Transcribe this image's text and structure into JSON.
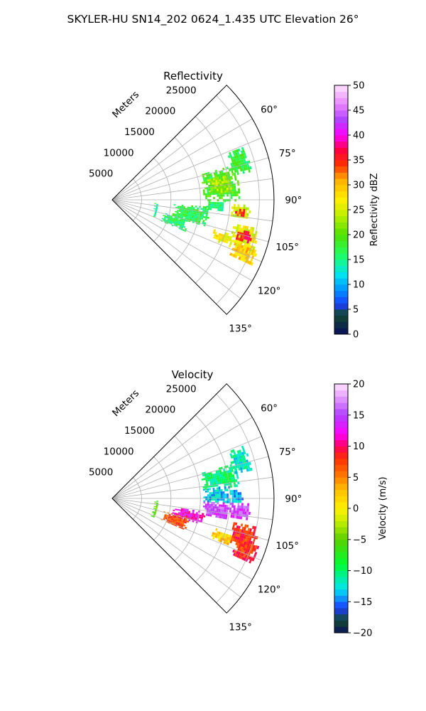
{
  "title": "SKYLER-HU  SN14_202  0624_1.435 UTC Elevation 26°",
  "chart_data": [
    {
      "type": "heatmap",
      "title": "Reflectivity",
      "projection": "polar sector",
      "rlabel": "Meters",
      "r_ticks": [
        5000,
        10000,
        15000,
        20000,
        25000
      ],
      "r_tick_labels": [
        "5000",
        "10000",
        "15000",
        "20000",
        "25000"
      ],
      "rlim": [
        0,
        27500
      ],
      "azimuth_range_deg": [
        45,
        135
      ],
      "azimuth_ticks_deg": [
        60,
        75,
        90,
        105,
        120,
        135
      ],
      "azimuth_tick_labels": [
        "60°",
        "75°",
        "90°",
        "105°",
        "120°",
        "135°"
      ],
      "grid": true,
      "colorbar": {
        "label": "Reflectivity dBZ",
        "min": 0,
        "max": 50,
        "ticks": [
          0,
          5,
          10,
          15,
          20,
          25,
          30,
          35,
          40,
          45,
          50
        ],
        "tick_labels": [
          "0",
          "5",
          "10",
          "15",
          "20",
          "25",
          "30",
          "35",
          "40",
          "45",
          "50"
        ],
        "color_stops": [
          [
            0,
            "#08105c"
          ],
          [
            4,
            "#124a2e"
          ],
          [
            6,
            "#1a3cff"
          ],
          [
            9,
            "#0096ff"
          ],
          [
            12,
            "#00e4f0"
          ],
          [
            16,
            "#20ff60"
          ],
          [
            20,
            "#50e000"
          ],
          [
            24,
            "#c0f000"
          ],
          [
            27,
            "#fff000"
          ],
          [
            31,
            "#ffb000"
          ],
          [
            34,
            "#ff3000"
          ],
          [
            37,
            "#ff0040"
          ],
          [
            40,
            "#ff00ff"
          ],
          [
            43,
            "#b040ff"
          ],
          [
            46,
            "#e880ff"
          ],
          [
            50,
            "#ffe4ff"
          ]
        ]
      },
      "echo_cells": [
        {
          "az": [
            74,
            90
          ],
          "r": [
            15500,
            21500
          ],
          "value": 19
        },
        {
          "az": [
            68,
            78
          ],
          "r": [
            21000,
            24000
          ],
          "value": 17
        },
        {
          "az": [
            78,
            86
          ],
          "r": [
            16500,
            20500
          ],
          "value": 23
        },
        {
          "az": [
            90,
            96
          ],
          "r": [
            16000,
            19000
          ],
          "value": 16
        },
        {
          "az": [
            94,
            106
          ],
          "r": [
            10500,
            16500
          ],
          "value": 17
        },
        {
          "az": [
            104,
            113
          ],
          "r": [
            9000,
            13500
          ],
          "value": 16
        },
        {
          "az": [
            92,
            98
          ],
          "r": [
            20000,
            23500
          ],
          "value": 25
        },
        {
          "az": [
            94,
            97
          ],
          "r": [
            21000,
            22500
          ],
          "value": 34
        },
        {
          "az": [
            101,
            110
          ],
          "r": [
            21000,
            25500
          ],
          "value": 26
        },
        {
          "az": [
            103,
            107
          ],
          "r": [
            22000,
            24500
          ],
          "value": 36
        },
        {
          "az": [
            106,
            111
          ],
          "r": [
            18000,
            21500
          ],
          "value": 27
        },
        {
          "az": [
            108,
            115
          ],
          "r": [
            22000,
            26000
          ],
          "value": 29
        },
        {
          "az": [
            93,
            114
          ],
          "r": [
            7200,
            7800
          ],
          "value": 15
        }
      ]
    },
    {
      "type": "heatmap",
      "title": "Velocity",
      "projection": "polar sector",
      "rlabel": "Meters",
      "r_ticks": [
        5000,
        10000,
        15000,
        20000,
        25000
      ],
      "r_tick_labels": [
        "5000",
        "10000",
        "15000",
        "20000",
        "25000"
      ],
      "rlim": [
        0,
        27500
      ],
      "azimuth_range_deg": [
        45,
        135
      ],
      "azimuth_ticks_deg": [
        60,
        75,
        90,
        105,
        120,
        135
      ],
      "azimuth_tick_labels": [
        "60°",
        "75°",
        "90°",
        "105°",
        "120°",
        "135°"
      ],
      "grid": true,
      "colorbar": {
        "label": "Velocity (m/s)",
        "min": -20,
        "max": 20,
        "ticks": [
          -20,
          -15,
          -10,
          -5,
          0,
          5,
          10,
          15,
          20
        ],
        "tick_labels": [
          "−20",
          "−15",
          "−10",
          "−5",
          "0",
          "5",
          "10",
          "15",
          "20"
        ],
        "color_stops": [
          [
            -20,
            "#08105c"
          ],
          [
            -18,
            "#124a2e"
          ],
          [
            -16,
            "#1a3cff"
          ],
          [
            -13,
            "#00e4f0"
          ],
          [
            -11,
            "#00f0a0"
          ],
          [
            -9,
            "#00ff30"
          ],
          [
            -5,
            "#5ad000"
          ],
          [
            -2,
            "#c8f000"
          ],
          [
            0,
            "#fff000"
          ],
          [
            3,
            "#ffc000"
          ],
          [
            5,
            "#ff8000"
          ],
          [
            8,
            "#ff3000"
          ],
          [
            10,
            "#ff0060"
          ],
          [
            12,
            "#ff00ff"
          ],
          [
            15,
            "#b040ff"
          ],
          [
            18,
            "#e8a0ff"
          ],
          [
            20,
            "#ffe4ff"
          ]
        ]
      },
      "echo_cells": [
        {
          "az": [
            74,
            84
          ],
          "r": [
            15500,
            21500
          ],
          "value": -10
        },
        {
          "az": [
            68,
            78
          ],
          "r": [
            21000,
            24000
          ],
          "value": -12
        },
        {
          "az": [
            84,
            92
          ],
          "r": [
            15500,
            20000
          ],
          "value": -13
        },
        {
          "az": [
            86,
            92
          ],
          "r": [
            20000,
            22000
          ],
          "value": -14
        },
        {
          "az": [
            92,
            100
          ],
          "r": [
            15500,
            20000
          ],
          "value": 15
        },
        {
          "az": [
            98,
            106
          ],
          "r": [
            10500,
            16000
          ],
          "value": 12
        },
        {
          "az": [
            104,
            113
          ],
          "r": [
            9000,
            13500
          ],
          "value": 7
        },
        {
          "az": [
            92,
            99
          ],
          "r": [
            20000,
            23500
          ],
          "value": 15
        },
        {
          "az": [
            101,
            110
          ],
          "r": [
            21000,
            25500
          ],
          "value": 8
        },
        {
          "az": [
            106,
            111
          ],
          "r": [
            18000,
            21500
          ],
          "value": 2
        },
        {
          "az": [
            108,
            115
          ],
          "r": [
            22000,
            26000
          ],
          "value": 8
        },
        {
          "az": [
            93,
            114
          ],
          "r": [
            7200,
            7800
          ],
          "value": -5
        }
      ]
    }
  ]
}
